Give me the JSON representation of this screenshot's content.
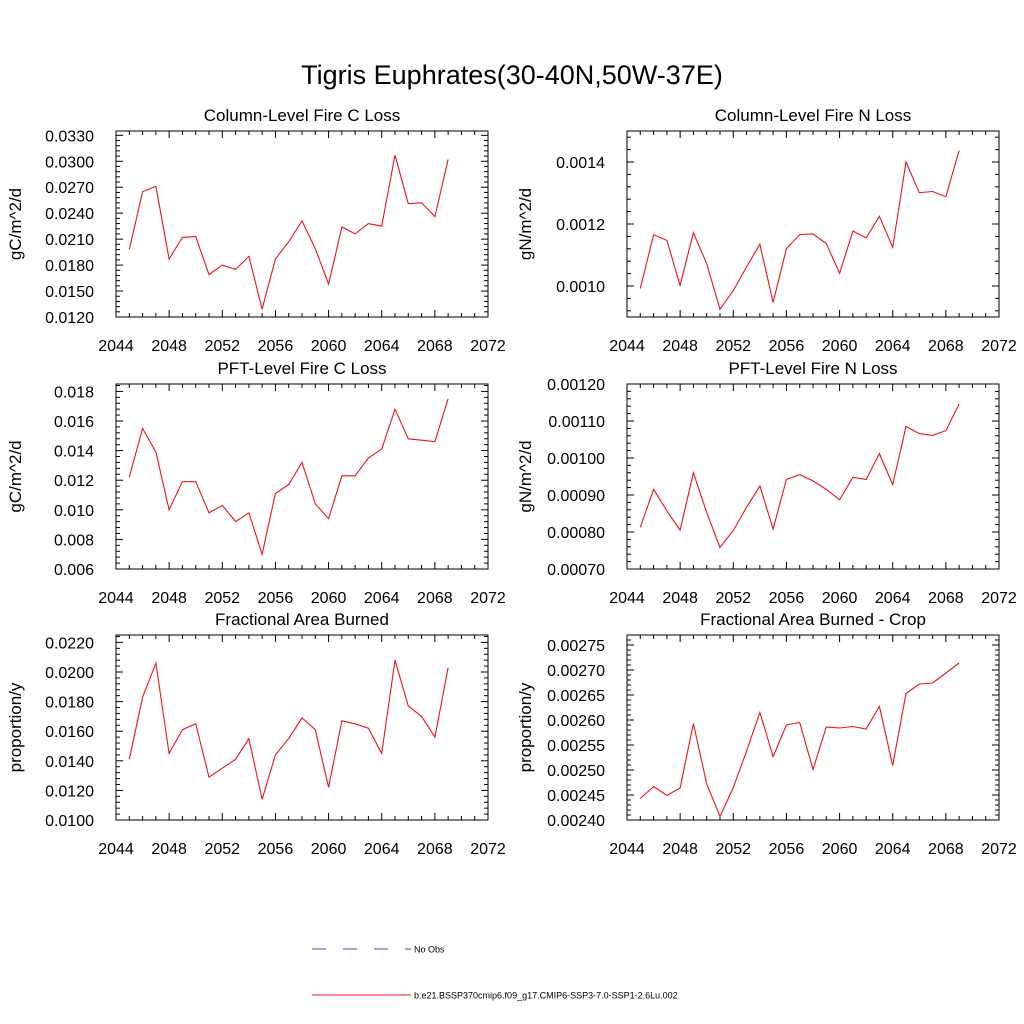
{
  "figure_title": "Tigris Euphrates(30-40N,50W-37E)",
  "series_color": "#e8141a",
  "chart_data": [
    {
      "type": "line",
      "title": "Column-Level Fire C Loss",
      "ylabel": "gC/m^2/d",
      "xlim": [
        2044,
        2072
      ],
      "xticks": [
        2044,
        2048,
        2052,
        2056,
        2060,
        2064,
        2068,
        2072
      ],
      "ylim": [
        0.012,
        0.0335
      ],
      "yticks": [
        0.012,
        0.015,
        0.018,
        0.021,
        0.024,
        0.027,
        0.03,
        0.033
      ],
      "ytick_labels": [
        "0.0120",
        "0.0150",
        "0.0180",
        "0.0210",
        "0.0240",
        "0.0270",
        "0.0300",
        "0.0330"
      ],
      "x": [
        2045,
        2046,
        2047,
        2048,
        2049,
        2050,
        2051,
        2052,
        2053,
        2054,
        2055,
        2056,
        2057,
        2058,
        2059,
        2060,
        2061,
        2062,
        2063,
        2064,
        2065,
        2066,
        2067,
        2068,
        2069
      ],
      "y": [
        0.0198,
        0.0265,
        0.0271,
        0.0187,
        0.0212,
        0.0213,
        0.0169,
        0.018,
        0.0175,
        0.019,
        0.0129,
        0.0187,
        0.0207,
        0.0231,
        0.0199,
        0.0158,
        0.0224,
        0.0216,
        0.0228,
        0.0225,
        0.0307,
        0.0251,
        0.0252,
        0.0236,
        0.0302
      ]
    },
    {
      "type": "line",
      "title": "Column-Level Fire N Loss",
      "ylabel": "gN/m^2/d",
      "xlim": [
        2044,
        2072
      ],
      "xticks": [
        2044,
        2048,
        2052,
        2056,
        2060,
        2064,
        2068,
        2072
      ],
      "ylim": [
        0.0009,
        0.0015
      ],
      "yticks": [
        0.001,
        0.0012,
        0.0014
      ],
      "ytick_labels": [
        "0.0010",
        "0.0012",
        "0.0014"
      ],
      "x": [
        2045,
        2046,
        2047,
        2048,
        2049,
        2050,
        2051,
        2052,
        2053,
        2054,
        2055,
        2056,
        2057,
        2058,
        2059,
        2060,
        2061,
        2062,
        2063,
        2064,
        2065,
        2066,
        2067,
        2068,
        2069
      ],
      "y": [
        0.000992,
        0.001165,
        0.001147,
        0.001002,
        0.001172,
        0.001072,
        0.000925,
        0.000985,
        0.001062,
        0.001135,
        0.000947,
        0.00112,
        0.001166,
        0.001168,
        0.001137,
        0.001041,
        0.001177,
        0.001155,
        0.001225,
        0.001125,
        0.0014,
        0.001301,
        0.001305,
        0.001288,
        0.001437
      ]
    },
    {
      "type": "line",
      "title": "PFT-Level Fire C Loss",
      "ylabel": "gC/m^2/d",
      "xlim": [
        2044,
        2072
      ],
      "xticks": [
        2044,
        2048,
        2052,
        2056,
        2060,
        2064,
        2068,
        2072
      ],
      "ylim": [
        0.006,
        0.0185
      ],
      "yticks": [
        0.006,
        0.008,
        0.01,
        0.012,
        0.014,
        0.016,
        0.018
      ],
      "ytick_labels": [
        "0.006",
        "0.008",
        "0.010",
        "0.012",
        "0.014",
        "0.016",
        "0.018"
      ],
      "x": [
        2045,
        2046,
        2047,
        2048,
        2049,
        2050,
        2051,
        2052,
        2053,
        2054,
        2055,
        2056,
        2057,
        2058,
        2059,
        2060,
        2061,
        2062,
        2063,
        2064,
        2065,
        2066,
        2067,
        2068,
        2069
      ],
      "y": [
        0.0122,
        0.0155,
        0.0139,
        0.01,
        0.0119,
        0.0119,
        0.0098,
        0.0103,
        0.0092,
        0.0098,
        0.007,
        0.0111,
        0.0117,
        0.0132,
        0.0104,
        0.0094,
        0.0123,
        0.0123,
        0.0135,
        0.0141,
        0.0168,
        0.0148,
        0.0147,
        0.0146,
        0.0175
      ]
    },
    {
      "type": "line",
      "title": "PFT-Level Fire N Loss",
      "ylabel": "gN/m^2/d",
      "xlim": [
        2044,
        2072
      ],
      "xticks": [
        2044,
        2048,
        2052,
        2056,
        2060,
        2064,
        2068,
        2072
      ],
      "ylim": [
        0.0007,
        0.0012
      ],
      "yticks": [
        0.0007,
        0.0008,
        0.0009,
        0.001,
        0.0011,
        0.0012
      ],
      "ytick_labels": [
        "0.00070",
        "0.00080",
        "0.00090",
        "0.00100",
        "0.00110",
        "0.00120"
      ],
      "x": [
        2045,
        2046,
        2047,
        2048,
        2049,
        2050,
        2051,
        2052,
        2053,
        2054,
        2055,
        2056,
        2057,
        2058,
        2059,
        2060,
        2061,
        2062,
        2063,
        2064,
        2065,
        2066,
        2067,
        2068,
        2069
      ],
      "y": [
        0.000813,
        0.000915,
        0.000857,
        0.000805,
        0.00096,
        0.000853,
        0.000758,
        0.000804,
        0.000867,
        0.000924,
        0.000808,
        0.000942,
        0.000955,
        0.000938,
        0.000915,
        0.000887,
        0.000948,
        0.000942,
        0.001012,
        0.000928,
        0.001085,
        0.001066,
        0.001061,
        0.001074,
        0.001146
      ]
    },
    {
      "type": "line",
      "title": "Fractional Area Burned",
      "ylabel": "proportion/y",
      "xlim": [
        2044,
        2072
      ],
      "xticks": [
        2044,
        2048,
        2052,
        2056,
        2060,
        2064,
        2068,
        2072
      ],
      "ylim": [
        0.01,
        0.0225
      ],
      "yticks": [
        0.01,
        0.012,
        0.014,
        0.016,
        0.018,
        0.02,
        0.022
      ],
      "ytick_labels": [
        "0.0100",
        "0.0120",
        "0.0140",
        "0.0160",
        "0.0180",
        "0.0200",
        "0.0220"
      ],
      "x": [
        2045,
        2046,
        2047,
        2048,
        2049,
        2050,
        2051,
        2052,
        2053,
        2054,
        2055,
        2056,
        2057,
        2058,
        2059,
        2060,
        2061,
        2062,
        2063,
        2064,
        2065,
        2066,
        2067,
        2068,
        2069
      ],
      "y": [
        0.0141,
        0.0183,
        0.0206,
        0.0145,
        0.0161,
        0.0165,
        0.0129,
        0.0135,
        0.0141,
        0.0155,
        0.0114,
        0.0144,
        0.0155,
        0.0169,
        0.0161,
        0.0122,
        0.0167,
        0.0165,
        0.0162,
        0.0145,
        0.0208,
        0.0177,
        0.017,
        0.0156,
        0.0203
      ]
    },
    {
      "type": "line",
      "title": "Fractional Area Burned - Crop",
      "ylabel": "proportion/y",
      "xlim": [
        2044,
        2072
      ],
      "xticks": [
        2044,
        2048,
        2052,
        2056,
        2060,
        2064,
        2068,
        2072
      ],
      "ylim": [
        0.0024,
        0.00277
      ],
      "yticks": [
        0.0024,
        0.00245,
        0.0025,
        0.00255,
        0.0026,
        0.00265,
        0.0027,
        0.00275
      ],
      "ytick_labels": [
        "0.00240",
        "0.00245",
        "0.00250",
        "0.00255",
        "0.00260",
        "0.00265",
        "0.00270",
        "0.00275"
      ],
      "x": [
        2045,
        2046,
        2047,
        2048,
        2049,
        2050,
        2051,
        2052,
        2053,
        2054,
        2055,
        2056,
        2057,
        2058,
        2059,
        2060,
        2061,
        2062,
        2063,
        2064,
        2065,
        2066,
        2067,
        2068,
        2069
      ],
      "y": [
        0.002443,
        0.002467,
        0.002449,
        0.002464,
        0.002593,
        0.002472,
        0.002407,
        0.002465,
        0.002538,
        0.002615,
        0.002527,
        0.00259,
        0.002595,
        0.002501,
        0.002586,
        0.002584,
        0.002587,
        0.002582,
        0.002627,
        0.002509,
        0.002653,
        0.002672,
        0.002674,
        0.002694,
        0.002714
      ]
    }
  ],
  "legend": [
    {
      "label": "No Obs",
      "color": "#4a4aa8",
      "dash": true
    },
    {
      "label": "b.e21.BSSP370cmip6.f09_g17.CMIP6-SSP3-7.0-SSP1-2.6Lu.002",
      "color": "#e8141a",
      "dash": false
    }
  ]
}
